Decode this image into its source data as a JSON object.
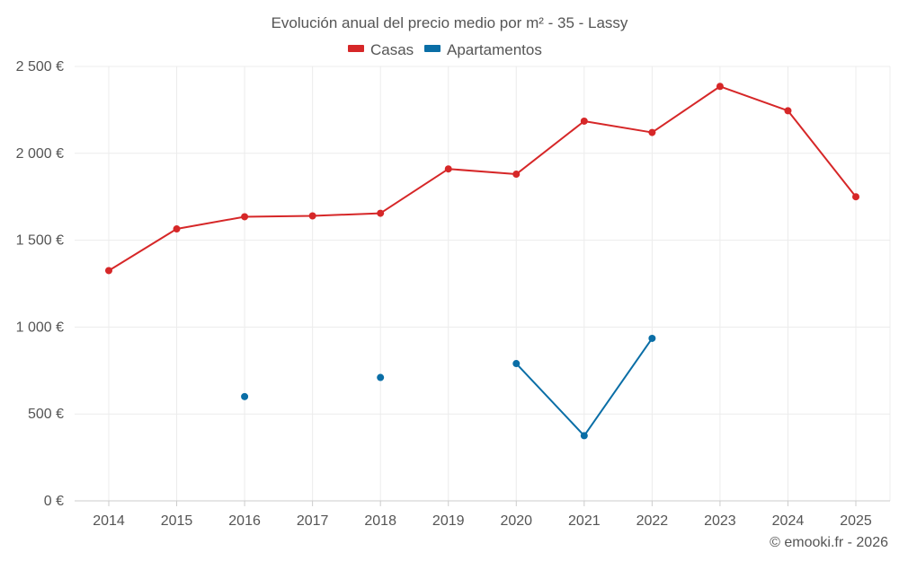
{
  "chart_data": {
    "type": "line",
    "title": "Evolución anual del precio medio por m² - 35 - Lassy",
    "categories": [
      "2014",
      "2015",
      "2016",
      "2017",
      "2018",
      "2019",
      "2020",
      "2021",
      "2022",
      "2023",
      "2024",
      "2025"
    ],
    "series": [
      {
        "name": "Casas",
        "color": "#d62728",
        "values": [
          1325,
          1565,
          1635,
          1640,
          1655,
          1910,
          1880,
          2185,
          2120,
          2385,
          2245,
          1750
        ]
      },
      {
        "name": "Apartamentos",
        "color": "#0a6ea6",
        "values": [
          null,
          null,
          600,
          null,
          710,
          null,
          790,
          375,
          935,
          null,
          null,
          null
        ]
      }
    ],
    "ylim": [
      0,
      2500
    ],
    "yticks": [
      0,
      500,
      1000,
      1500,
      2000,
      2500
    ],
    "ytick_labels": [
      "0 €",
      "500 €",
      "1 000 €",
      "1 500 €",
      "2 000 €",
      "2 500 €"
    ],
    "xlabel": "",
    "ylabel": "",
    "legend_position": "top-center",
    "grid": true
  },
  "credit": "© emooki.fr - 2026"
}
